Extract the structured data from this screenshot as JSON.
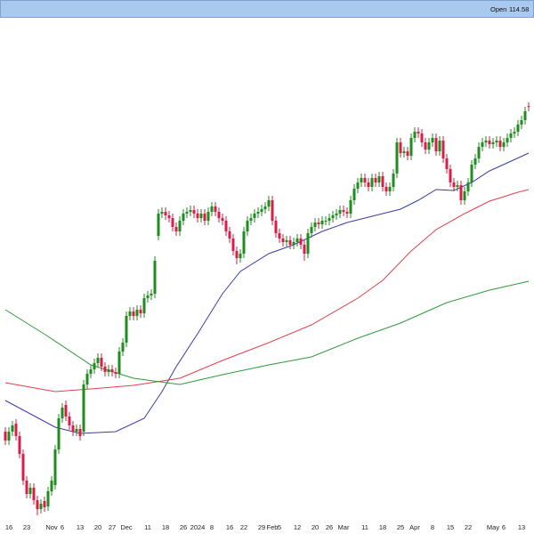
{
  "chart_data": {
    "type": "candlestick",
    "header_label": "Open",
    "up_color": "#1e8c1e",
    "down_color": "#d81e48",
    "ylim": [
      68,
      124.5
    ],
    "grid": false,
    "categories": [
      null,
      "16",
      null,
      null,
      null,
      null,
      "23",
      null,
      null,
      null,
      null,
      null,
      null,
      "Nov",
      null,
      null,
      "6",
      null,
      null,
      null,
      null,
      "13",
      null,
      null,
      null,
      null,
      "20",
      null,
      null,
      null,
      "27",
      null,
      null,
      null,
      "Dec",
      null,
      null,
      null,
      null,
      null,
      "11",
      null,
      null,
      null,
      null,
      "18",
      null,
      null,
      null,
      null,
      "26",
      null,
      null,
      null,
      "2024",
      null,
      null,
      null,
      "8",
      null,
      null,
      null,
      null,
      "16",
      null,
      null,
      null,
      "22",
      null,
      null,
      null,
      null,
      "29",
      null,
      null,
      "Feb",
      null,
      "5",
      null,
      null,
      null,
      null,
      "12",
      null,
      null,
      null,
      null,
      "20",
      null,
      null,
      null,
      "26",
      null,
      null,
      null,
      "Mar",
      null,
      null,
      null,
      null,
      null,
      "11",
      null,
      null,
      null,
      null,
      "18",
      null,
      null,
      null,
      null,
      "25",
      null,
      null,
      null,
      "Apr",
      null,
      null,
      null,
      null,
      "8",
      null,
      null,
      null,
      null,
      "15",
      null,
      null,
      null,
      null,
      "22",
      null,
      null,
      null,
      null,
      null,
      null,
      "May",
      null,
      null,
      "6",
      null,
      null,
      null,
      null,
      "13",
      null,
      null
    ],
    "open": [
      78.0,
      77.0,
      78.0,
      78.9,
      77.5,
      75.5,
      72.5,
      71.0,
      71.7,
      70.3,
      69.3,
      70.2,
      69.6,
      71.3,
      72.0,
      76.0,
      79.5,
      81.0,
      79.7,
      78.7,
      78.0,
      78.3,
      78.0,
      83.3,
      84.5,
      85.0,
      85.7,
      86.3,
      85.3,
      84.7,
      85.0,
      84.7,
      84.5,
      87.0,
      88.0,
      91.0,
      91.5,
      91.0,
      91.7,
      91.3,
      93.0,
      93.3,
      93.5,
      100.0,
      102.5,
      102.7,
      102.3,
      102.0,
      101.0,
      100.5,
      101.7,
      102.5,
      102.7,
      102.9,
      102.5,
      102.0,
      102.5,
      101.7,
      102.7,
      103.3,
      102.7,
      102.0,
      101.7,
      100.5,
      99.7,
      98.3,
      97.5,
      98.0,
      100.5,
      101.7,
      102.0,
      102.5,
      102.7,
      103.0,
      103.3,
      104.0,
      101.7,
      100.3,
      99.7,
      99.3,
      99.5,
      99.0,
      99.3,
      99.7,
      99.0,
      98.0,
      100.3,
      101.0,
      101.5,
      101.3,
      101.7,
      101.7,
      102.0,
      102.3,
      102.5,
      102.9,
      102.7,
      102.5,
      104.0,
      105.3,
      106.0,
      106.5,
      106.0,
      105.5,
      106.5,
      106.0,
      106.7,
      105.5,
      105.0,
      105.5,
      107.0,
      110.5,
      109.3,
      109.5,
      109.0,
      111.0,
      111.7,
      111.5,
      110.5,
      109.7,
      110.5,
      111.0,
      109.5,
      110.7,
      108.7,
      107.5,
      106.0,
      105.5,
      105.7,
      104.0,
      105.0,
      106.0,
      108.0,
      108.7,
      110.0,
      110.5,
      110.7,
      110.3,
      110.5,
      110.7,
      110.0,
      110.5,
      111.0,
      111.5,
      111.7,
      112.5,
      113.0,
      114.58
    ],
    "high": [
      78.5,
      78.5,
      79.2,
      79.4,
      78.0,
      76.0,
      73.0,
      72.2,
      72.2,
      70.8,
      70.4,
      70.7,
      71.8,
      73.0,
      76.5,
      80.0,
      81.2,
      81.5,
      80.2,
      79.2,
      78.8,
      78.8,
      83.8,
      85.0,
      85.5,
      86.2,
      86.8,
      86.8,
      85.8,
      85.5,
      85.5,
      85.2,
      87.5,
      88.5,
      91.5,
      92.0,
      92.0,
      92.2,
      92.2,
      93.5,
      93.8,
      94.0,
      97.7,
      103.0,
      103.2,
      103.2,
      102.8,
      102.5,
      101.5,
      102.2,
      103.0,
      103.2,
      103.4,
      103.4,
      103.0,
      103.0,
      103.0,
      103.2,
      103.8,
      103.8,
      103.2,
      102.5,
      102.2,
      101.0,
      100.2,
      98.8,
      98.5,
      101.0,
      102.2,
      102.5,
      103.0,
      103.2,
      103.5,
      103.8,
      104.5,
      104.5,
      102.2,
      100.8,
      100.2,
      100.0,
      100.0,
      99.8,
      100.2,
      100.2,
      99.5,
      100.8,
      101.5,
      102.0,
      102.0,
      102.2,
      102.2,
      102.5,
      102.8,
      103.0,
      103.4,
      103.4,
      103.2,
      104.5,
      105.8,
      106.5,
      107.0,
      107.0,
      106.5,
      107.0,
      107.0,
      107.2,
      107.2,
      106.0,
      106.0,
      107.5,
      111.0,
      111.0,
      110.0,
      110.0,
      111.5,
      112.2,
      112.2,
      112.0,
      111.0,
      111.0,
      111.5,
      111.5,
      111.2,
      111.2,
      109.2,
      108.0,
      106.5,
      106.2,
      106.2,
      105.5,
      106.5,
      108.5,
      109.2,
      110.5,
      111.0,
      111.2,
      111.2,
      111.0,
      111.2,
      111.2,
      111.0,
      111.5,
      112.0,
      112.2,
      113.0,
      113.5,
      114.5,
      115.0
    ],
    "low": [
      76.5,
      76.5,
      77.5,
      77.0,
      75.0,
      72.0,
      70.5,
      70.5,
      69.8,
      68.6,
      68.8,
      69.0,
      69.1,
      70.8,
      71.5,
      75.5,
      79.0,
      79.2,
      78.2,
      77.5,
      77.5,
      77.0,
      77.5,
      82.8,
      84.0,
      84.5,
      85.2,
      84.8,
      84.2,
      84.2,
      84.2,
      84.0,
      84.0,
      86.5,
      87.5,
      90.5,
      90.5,
      90.5,
      90.8,
      90.8,
      92.5,
      92.8,
      93.0,
      99.5,
      102.0,
      101.8,
      101.5,
      100.5,
      100.0,
      100.0,
      101.2,
      102.0,
      102.2,
      102.0,
      101.5,
      101.5,
      101.2,
      101.2,
      102.2,
      102.2,
      101.5,
      101.2,
      100.0,
      99.2,
      97.8,
      96.8,
      97.0,
      97.5,
      100.0,
      101.2,
      101.5,
      102.0,
      102.2,
      102.5,
      102.8,
      101.2,
      99.8,
      99.2,
      98.8,
      98.8,
      98.5,
      98.5,
      98.8,
      98.5,
      97.2,
      97.5,
      99.8,
      100.5,
      100.8,
      100.8,
      101.2,
      101.2,
      101.5,
      101.8,
      102.0,
      102.2,
      102.0,
      102.0,
      103.5,
      104.8,
      105.5,
      105.5,
      105.0,
      105.0,
      105.5,
      105.5,
      105.0,
      104.5,
      104.5,
      105.0,
      106.5,
      108.8,
      108.8,
      108.5,
      108.5,
      110.5,
      111.0,
      110.0,
      109.2,
      109.2,
      110.0,
      109.0,
      109.0,
      108.2,
      107.0,
      105.5,
      105.0,
      105.0,
      103.5,
      103.5,
      104.5,
      105.5,
      107.5,
      108.2,
      109.5,
      110.0,
      109.8,
      109.8,
      110.0,
      109.5,
      109.5,
      110.0,
      110.5,
      111.0,
      111.2,
      112.0,
      112.5,
      114.0
    ],
    "close": [
      77.0,
      78.0,
      78.7,
      77.5,
      75.5,
      72.5,
      71.0,
      71.7,
      70.3,
      69.3,
      69.9,
      69.5,
      71.3,
      72.5,
      76.0,
      79.5,
      80.7,
      79.7,
      78.7,
      78.0,
      78.3,
      77.5,
      83.3,
      84.5,
      85.0,
      85.7,
      86.3,
      85.3,
      84.7,
      85.0,
      84.7,
      84.5,
      87.0,
      88.0,
      91.0,
      91.5,
      91.0,
      91.7,
      91.3,
      93.0,
      93.3,
      93.5,
      97.2,
      102.5,
      102.7,
      102.3,
      102.0,
      101.0,
      100.5,
      101.7,
      102.5,
      102.7,
      102.9,
      102.5,
      102.0,
      102.5,
      101.7,
      102.7,
      103.3,
      102.7,
      102.0,
      101.7,
      100.5,
      99.7,
      98.3,
      97.5,
      98.0,
      100.5,
      101.7,
      102.0,
      102.5,
      102.7,
      103.0,
      103.3,
      104.0,
      101.7,
      100.3,
      99.7,
      99.3,
      99.5,
      99.0,
      99.3,
      99.7,
      99.0,
      98.0,
      100.3,
      101.0,
      101.5,
      101.3,
      101.7,
      101.7,
      102.0,
      102.3,
      102.5,
      102.9,
      102.7,
      102.5,
      104.0,
      105.3,
      106.0,
      106.5,
      106.0,
      105.5,
      106.5,
      106.0,
      106.7,
      105.5,
      105.0,
      105.5,
      107.0,
      110.5,
      109.3,
      109.5,
      109.0,
      111.0,
      111.7,
      111.5,
      110.5,
      109.7,
      110.5,
      111.0,
      109.5,
      110.7,
      108.7,
      107.5,
      106.0,
      105.5,
      105.7,
      104.0,
      105.0,
      106.0,
      108.0,
      108.7,
      110.0,
      110.5,
      110.7,
      110.3,
      110.5,
      110.7,
      110.0,
      110.5,
      111.0,
      111.5,
      111.7,
      112.5,
      113.0,
      114.0,
      114.5
    ],
    "moving_averages": [
      {
        "color": "#3a3aa8",
        "x": [
          0,
          14,
          21,
          31,
          39,
          44,
          48,
          54,
          61,
          66,
          74,
          81,
          89,
          96,
          104,
          111,
          116,
          121,
          126,
          131,
          136,
          141,
          147
        ],
        "values": [
          81.5,
          78.5,
          77.8,
          78.0,
          79.5,
          82.5,
          85.3,
          89.0,
          93.5,
          96.0,
          98.0,
          99.0,
          100.5,
          101.5,
          102.3,
          103.0,
          104.0,
          105.2,
          105.1,
          106.0,
          107.3,
          108.2,
          109.3
        ]
      },
      {
        "color": "#e0404e",
        "x": [
          0,
          14,
          24,
          36,
          49,
          61,
          74,
          86,
          99,
          106,
          114,
          121,
          129,
          136,
          144,
          147
        ],
        "values": [
          83.5,
          82.5,
          82.8,
          83.2,
          84.0,
          86.0,
          88.0,
          90.0,
          93.0,
          95.0,
          98.3,
          100.7,
          102.5,
          103.9,
          104.9,
          105.2
        ]
      },
      {
        "color": "#2f9a3a",
        "x": [
          0,
          12,
          24,
          36,
          49,
          61,
          74,
          86,
          99,
          111,
          124,
          136,
          147
        ],
        "values": [
          91.7,
          88.7,
          85.5,
          84.0,
          83.3,
          84.4,
          85.5,
          86.4,
          88.5,
          90.2,
          92.5,
          93.9,
          94.9
        ]
      }
    ]
  }
}
